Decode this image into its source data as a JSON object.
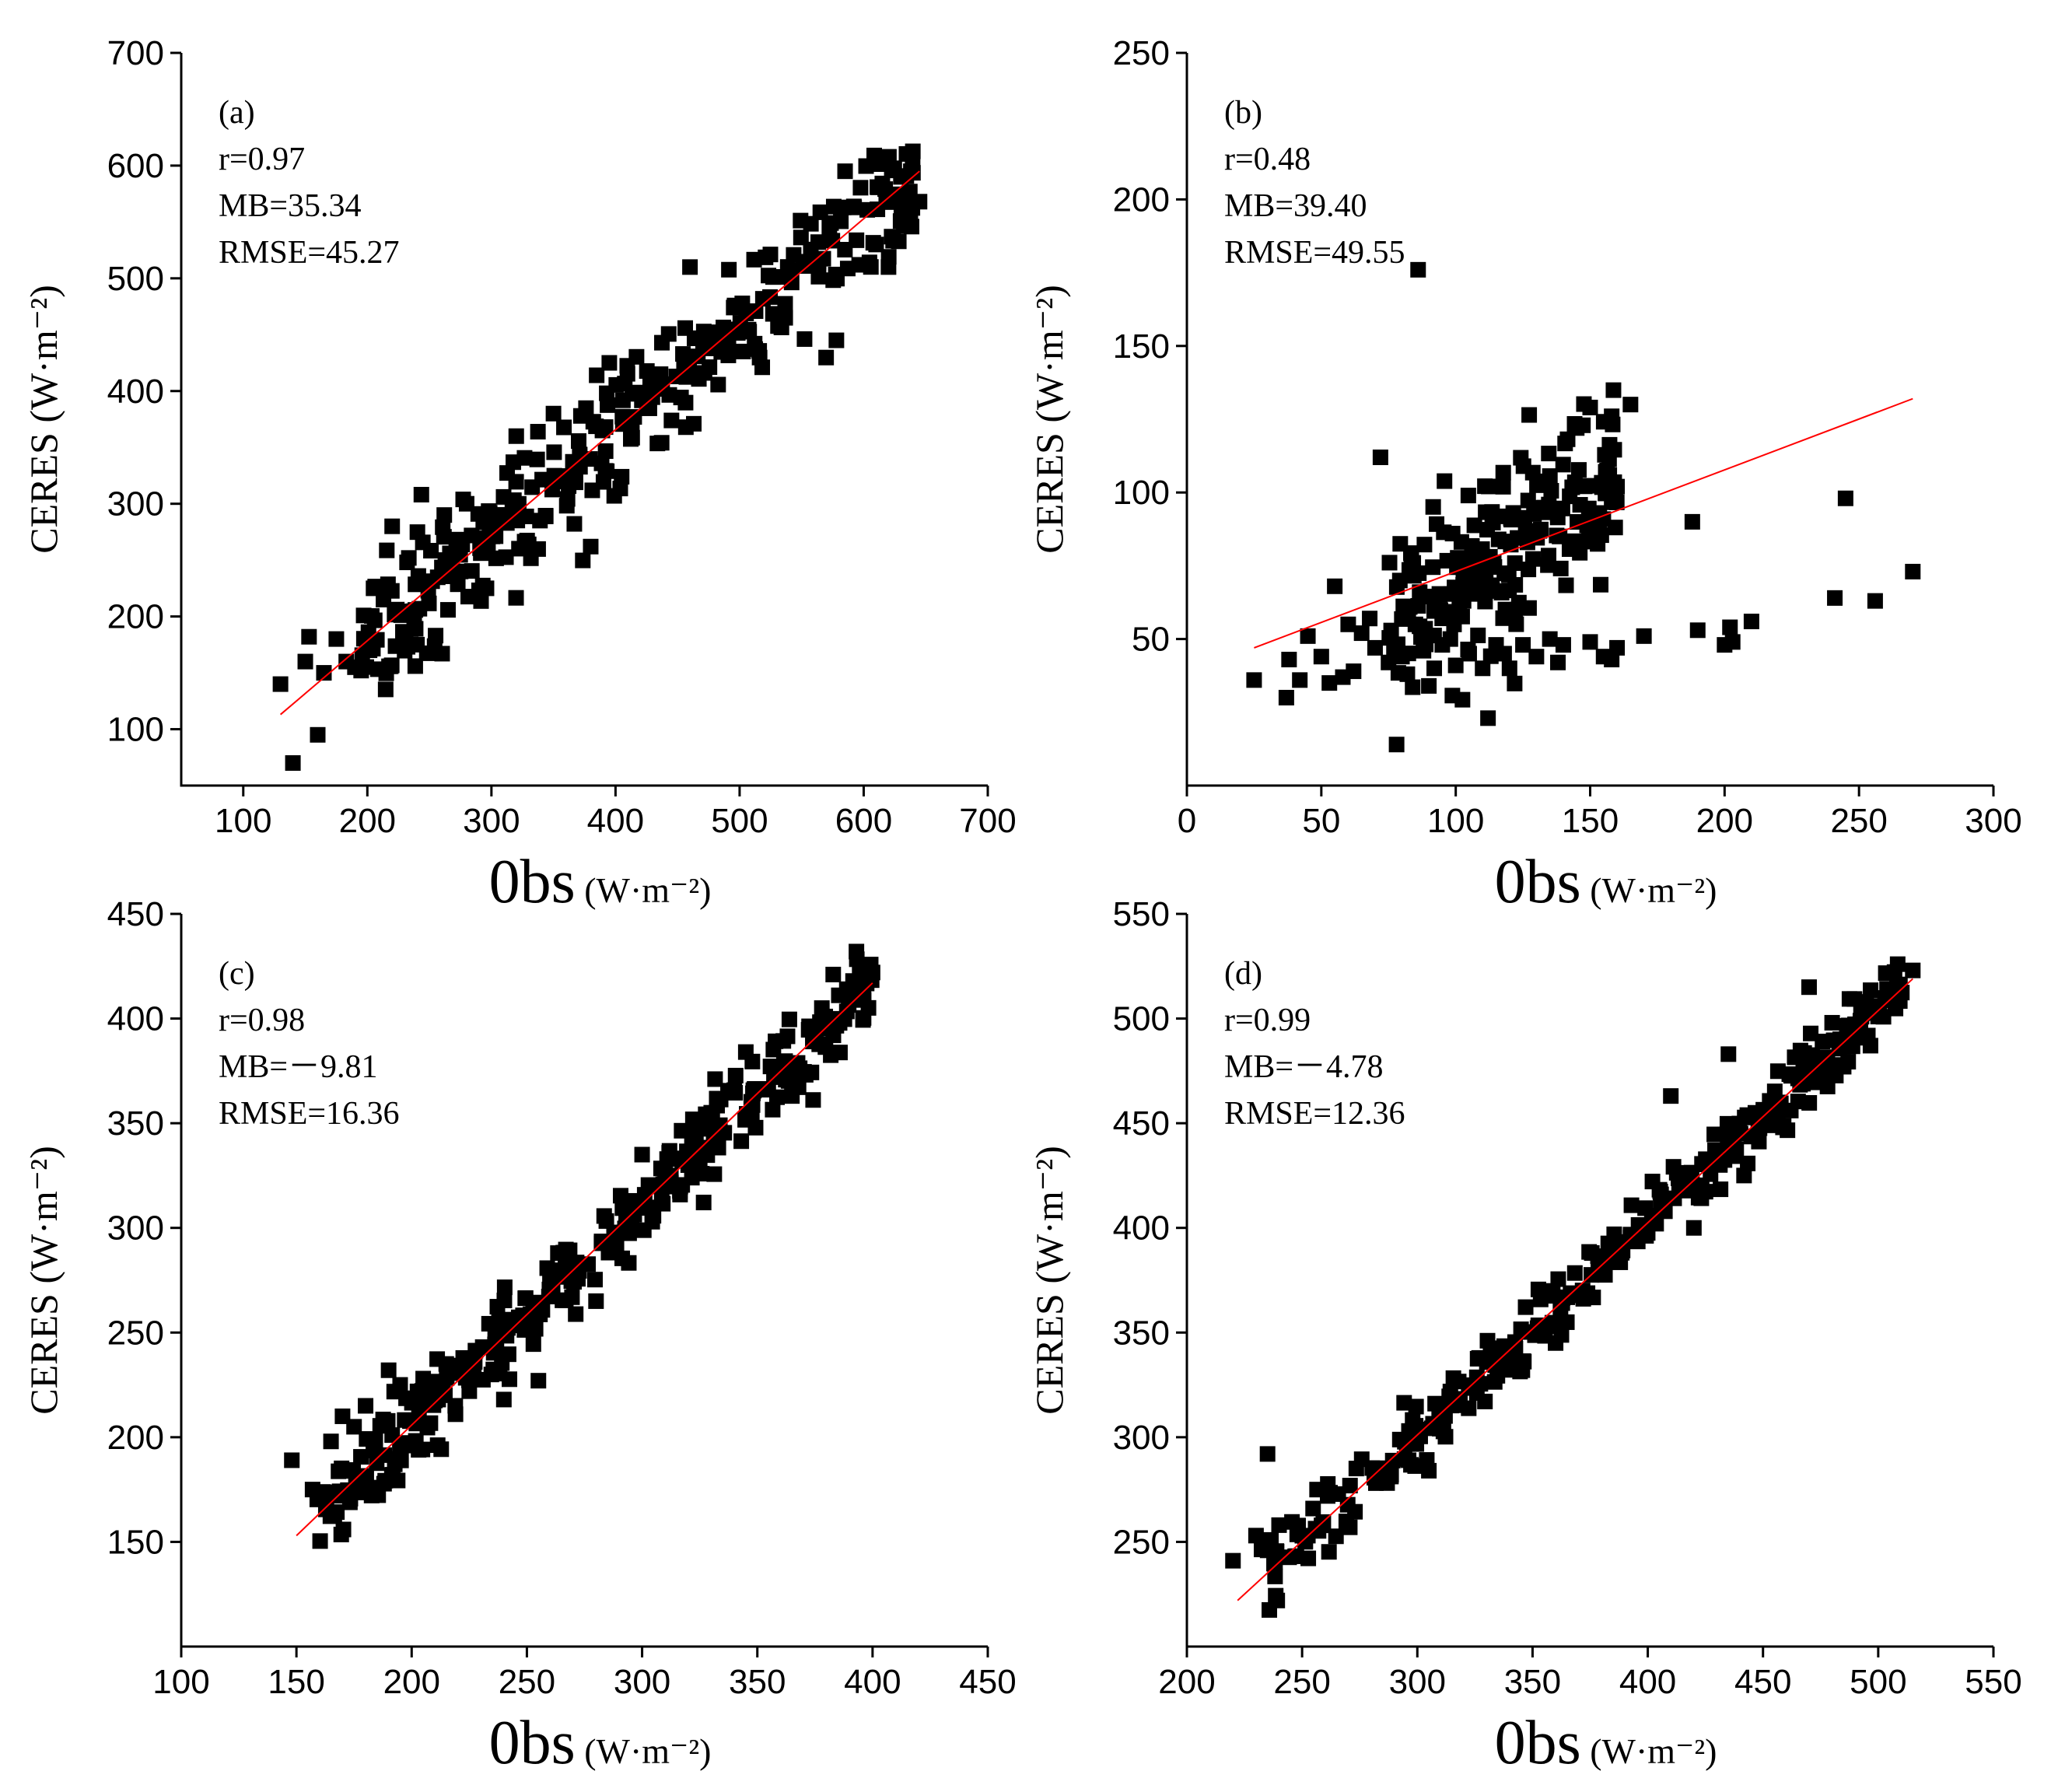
{
  "chart_data": [
    {
      "id": "a",
      "type": "scatter",
      "panel_label": "(a)",
      "stats": [
        "r=0.97",
        "MB=35.34",
        "RMSE=45.27"
      ],
      "ylabel": "CERES",
      "ylabel_unit": "(W·m⁻²)",
      "xlabel": "0bs",
      "xlabel_unit": "(W·m⁻²)",
      "xlim": [
        50,
        700
      ],
      "ylim": [
        50,
        700
      ],
      "xticks": [
        100,
        200,
        300,
        400,
        500,
        600,
        700
      ],
      "yticks": [
        100,
        200,
        300,
        400,
        500,
        600,
        700
      ],
      "fit_line": [
        [
          130,
          113
        ],
        [
          645,
          595
        ]
      ],
      "cluster": {
        "x_range": [
          195,
          640
        ],
        "slope": 0.935,
        "intercept": -8.5,
        "noise": 27,
        "count": 320
      },
      "points": [
        [
          130,
          140
        ],
        [
          140,
          70
        ],
        [
          150,
          160
        ],
        [
          153,
          182
        ],
        [
          160,
          95
        ],
        [
          165,
          150
        ],
        [
          175,
          180
        ],
        [
          183,
          160
        ],
        [
          190,
          155
        ],
        [
          195,
          152
        ],
        [
          200,
          178
        ],
        [
          205,
          225
        ],
        [
          213,
          215
        ],
        [
          220,
          280
        ],
        [
          232,
          248
        ],
        [
          240,
          175
        ],
        [
          255,
          183
        ],
        [
          262,
          290
        ],
        [
          280,
          300
        ],
        [
          296,
          225
        ],
        [
          320,
          360
        ],
        [
          330,
          264
        ],
        [
          350,
          380
        ],
        [
          380,
          262
        ],
        [
          395,
          425
        ],
        [
          460,
          510
        ],
        [
          578,
          445
        ],
        [
          585,
          595
        ],
        [
          610,
          530
        ],
        [
          620,
          510
        ],
        [
          630,
          590
        ],
        [
          638,
          595
        ],
        [
          645,
          568
        ]
      ],
      "series_colors": {
        "points": "#000000",
        "fit": "#ff0000"
      }
    },
    {
      "id": "b",
      "type": "scatter",
      "panel_label": "(b)",
      "stats": [
        "r=0.48",
        "MB=39.40",
        "RMSE=49.55"
      ],
      "ylabel": "CERES",
      "ylabel_unit": "(W·m⁻²)",
      "xlabel": "0bs",
      "xlabel_unit": "(W·m⁻²)",
      "xlim": [
        0,
        300
      ],
      "ylim": [
        0,
        250
      ],
      "xticks": [
        0,
        50,
        100,
        150,
        200,
        250,
        300
      ],
      "yticks": [
        50,
        100,
        150,
        200,
        250
      ],
      "fit_line": [
        [
          25,
          47
        ],
        [
          270,
          132
        ]
      ],
      "cluster": {
        "x_range": [
          75,
          160
        ],
        "slope": 0.5,
        "intercept": 22,
        "noise": 16,
        "count": 200
      },
      "points": [
        [
          25,
          36
        ],
        [
          37,
          30
        ],
        [
          38,
          43
        ],
        [
          42,
          36
        ],
        [
          45,
          51
        ],
        [
          50,
          44
        ],
        [
          53,
          35
        ],
        [
          55,
          68
        ],
        [
          58,
          37
        ],
        [
          60,
          55
        ],
        [
          62,
          39
        ],
        [
          65,
          52
        ],
        [
          68,
          57
        ],
        [
          70,
          47
        ],
        [
          72,
          112
        ],
        [
          75,
          42
        ],
        [
          78,
          14
        ],
        [
          80,
          44
        ],
        [
          82,
          38
        ],
        [
          85,
          55
        ],
        [
          86,
          176
        ],
        [
          88,
          46
        ],
        [
          90,
          34
        ],
        [
          92,
          40
        ],
        [
          95,
          48
        ],
        [
          98,
          50
        ],
        [
          100,
          41
        ],
        [
          105,
          45
        ],
        [
          110,
          40
        ],
        [
          112,
          23
        ],
        [
          115,
          48
        ],
        [
          118,
          45
        ],
        [
          120,
          40
        ],
        [
          125,
          48
        ],
        [
          130,
          44
        ],
        [
          135,
          50
        ],
        [
          138,
          42
        ],
        [
          140,
          48
        ],
        [
          150,
          49
        ],
        [
          155,
          44
        ],
        [
          158,
          43
        ],
        [
          160,
          47
        ],
        [
          170,
          51
        ],
        [
          188,
          90
        ],
        [
          190,
          53
        ],
        [
          200,
          48
        ],
        [
          202,
          54
        ],
        [
          203,
          49
        ],
        [
          210,
          56
        ],
        [
          241,
          64
        ],
        [
          245,
          98
        ],
        [
          256,
          63
        ],
        [
          270,
          73
        ],
        [
          150,
          129
        ],
        [
          158,
          126
        ],
        [
          165,
          130
        ],
        [
          145,
          122
        ],
        [
          160,
          102
        ]
      ],
      "series_colors": {
        "points": "#000000",
        "fit": "#ff0000"
      }
    },
    {
      "id": "c",
      "type": "scatter",
      "panel_label": "(c)",
      "stats": [
        "r=0.98",
        "MB=－9.81",
        "RMSE=16.36"
      ],
      "ylabel": "CERES",
      "ylabel_unit": "(W·m⁻²)",
      "xlabel": "0bs",
      "xlabel_unit": "(W·m⁻²)",
      "xlim": [
        100,
        450
      ],
      "ylim": [
        100,
        450
      ],
      "xticks": [
        100,
        150,
        200,
        250,
        300,
        350,
        400,
        450
      ],
      "yticks": [
        150,
        200,
        250,
        300,
        350,
        400,
        450
      ],
      "fit_line": [
        [
          150,
          153
        ],
        [
          400,
          417
        ]
      ],
      "cluster": {
        "x_range": [
          158,
          400
        ],
        "slope": 1.056,
        "intercept": -5.5,
        "noise": 10,
        "count": 320
      },
      "points": [
        [
          148,
          189
        ],
        [
          157,
          175
        ],
        [
          163,
          170
        ],
        [
          165,
          198
        ],
        [
          170,
          210
        ],
        [
          175,
          205
        ],
        [
          180,
          215
        ],
        [
          190,
          232
        ],
        [
          195,
          225
        ],
        [
          205,
          228
        ],
        [
          215,
          235
        ],
        [
          225,
          222
        ],
        [
          240,
          218
        ],
        [
          255,
          227
        ],
        [
          280,
          265
        ],
        [
          300,
          335
        ],
        [
          320,
          330
        ],
        [
          330,
          355
        ],
        [
          345,
          384
        ],
        [
          360,
          375
        ],
        [
          365,
          363
        ],
        [
          378,
          405
        ],
        [
          383,
          392
        ],
        [
          393,
          432
        ],
        [
          397,
          418
        ],
        [
          400,
          422
        ]
      ],
      "series_colors": {
        "points": "#000000",
        "fit": "#ff0000"
      }
    },
    {
      "id": "d",
      "type": "scatter",
      "panel_label": "(d)",
      "stats": [
        "r=0.99",
        "MB=－4.78",
        "RMSE=12.36"
      ],
      "ylabel": "CERES",
      "ylabel_unit": "(W·m⁻²)",
      "xlabel": "0bs",
      "xlabel_unit": "(W·m⁻²)",
      "xlim": [
        200,
        550
      ],
      "ylim": [
        200,
        550
      ],
      "xticks": [
        200,
        250,
        300,
        350,
        400,
        450,
        500,
        550
      ],
      "yticks": [
        250,
        300,
        350,
        400,
        450,
        500,
        550
      ],
      "fit_line": [
        [
          222,
          222
        ],
        [
          515,
          519
        ]
      ],
      "cluster": {
        "x_range": [
          232,
          512
        ],
        "slope": 1.01,
        "intercept": -2,
        "noise": 8,
        "count": 320
      },
      "points": [
        [
          220,
          241
        ],
        [
          230,
          253
        ],
        [
          235,
          292
        ],
        [
          240,
          258
        ],
        [
          305,
          284
        ],
        [
          360,
          345
        ],
        [
          410,
          463
        ],
        [
          420,
          400
        ],
        [
          435,
          483
        ],
        [
          455,
          449
        ],
        [
          470,
          515
        ],
        [
          480,
          498
        ],
        [
          485,
          477
        ],
        [
          500,
          506
        ],
        [
          505,
          512
        ],
        [
          515,
          523
        ]
      ],
      "series_colors": {
        "points": "#000000",
        "fit": "#ff0000"
      }
    }
  ]
}
